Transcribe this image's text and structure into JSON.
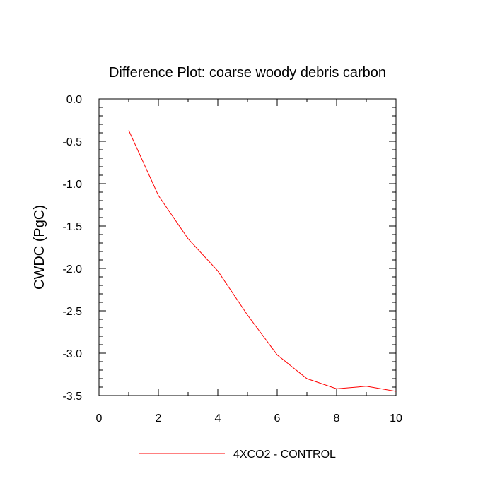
{
  "chart_data": {
    "type": "line",
    "title": "Difference Plot: coarse woody debris carbon",
    "xlabel": "",
    "ylabel": "CWDC  (PgC)",
    "xlim": [
      0,
      10
    ],
    "ylim": [
      -3.5,
      0.0
    ],
    "x_ticks": [
      0,
      2,
      4,
      6,
      8,
      10
    ],
    "x_tick_labels": [
      "0",
      "2",
      "4",
      "6",
      "8",
      "10"
    ],
    "y_ticks": [
      0.0,
      -0.5,
      -1.0,
      -1.5,
      -2.0,
      -2.5,
      -3.0,
      -3.5
    ],
    "y_tick_labels": [
      "0.0",
      "-0.5",
      "-1.0",
      "-1.5",
      "-2.0",
      "-2.5",
      "-3.0",
      "-3.5"
    ],
    "grid": false,
    "legend_position": "bottom-center",
    "series": [
      {
        "name": "4XCO2 - CONTROL",
        "color": "#ff0000",
        "x": [
          1,
          2,
          3,
          4,
          5,
          6,
          7,
          8,
          9,
          10
        ],
        "values": [
          -0.37,
          -1.14,
          -1.65,
          -2.03,
          -2.55,
          -3.02,
          -3.3,
          -3.42,
          -3.39,
          -3.45
        ]
      }
    ]
  }
}
